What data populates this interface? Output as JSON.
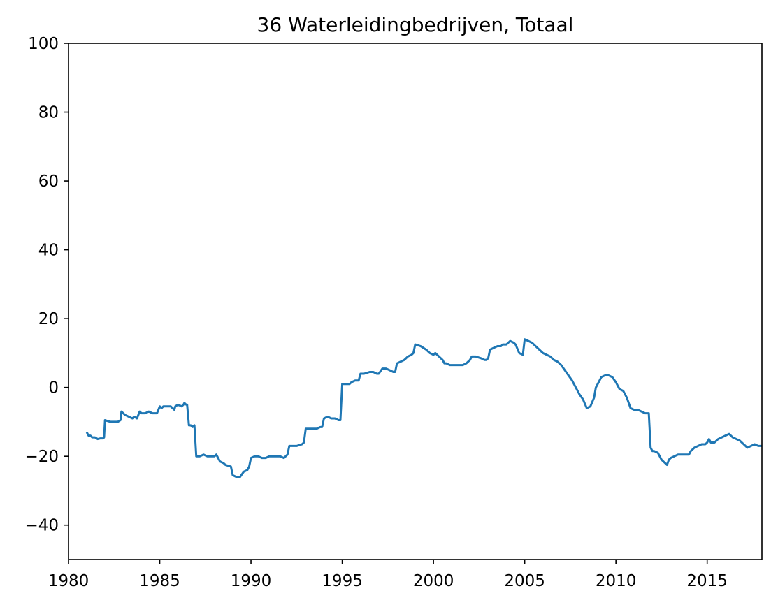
{
  "colors": {
    "series": "#1f77b4",
    "axes": "#000000",
    "background": "#ffffff"
  },
  "chart_data": {
    "type": "line",
    "title": "36 Waterleidingbedrijven, Totaal",
    "xlabel": "",
    "ylabel": "",
    "xlim": [
      1980,
      2018
    ],
    "ylim": [
      -50,
      100
    ],
    "xticks": [
      1980,
      1985,
      1990,
      1995,
      2000,
      2005,
      2010,
      2015
    ],
    "yticks": [
      -40,
      -20,
      0,
      20,
      40,
      60,
      80,
      100
    ],
    "xtick_labels": [
      "1980",
      "1985",
      "1990",
      "1995",
      "2000",
      "2005",
      "2010",
      "2015"
    ],
    "ytick_labels": [
      "−40",
      "−20",
      "0",
      "20",
      "40",
      "60",
      "80",
      "100"
    ],
    "grid": false,
    "legend": "none",
    "series": [
      {
        "x": [
          1981.0,
          1981.1,
          1981.2,
          1981.3,
          1981.45,
          1981.6,
          1981.75,
          1981.9,
          1981.95,
          1982.0,
          1982.1,
          1982.3,
          1982.5,
          1982.7,
          1982.85,
          1982.9,
          1983.0,
          1983.1,
          1983.3,
          1983.5,
          1983.6,
          1983.75,
          1983.9,
          1984.0,
          1984.2,
          1984.4,
          1984.6,
          1984.75,
          1984.85,
          1985.0,
          1985.1,
          1985.2,
          1985.4,
          1985.6,
          1985.8,
          1985.85,
          1986.0,
          1986.2,
          1986.3,
          1986.35,
          1986.45,
          1986.5,
          1986.6,
          1986.7,
          1986.8,
          1986.9,
          1987.0,
          1987.2,
          1987.4,
          1987.6,
          1987.8,
          1988.0,
          1988.1,
          1988.3,
          1988.5,
          1988.6,
          1988.9,
          1989.0,
          1989.2,
          1989.4,
          1989.6,
          1989.8,
          1989.9,
          1990.0,
          1990.2,
          1990.4,
          1990.6,
          1990.8,
          1991.0,
          1991.2,
          1991.4,
          1991.6,
          1991.8,
          1992.0,
          1992.1,
          1992.2,
          1992.5,
          1992.8,
          1992.9,
          1993.0,
          1993.1,
          1993.4,
          1993.6,
          1993.8,
          1993.9,
          1994.0,
          1994.2,
          1994.4,
          1994.6,
          1994.8,
          1994.9,
          1995.0,
          1995.2,
          1995.4,
          1995.5,
          1995.7,
          1995.9,
          1996.0,
          1996.2,
          1996.5,
          1996.7,
          1996.9,
          1997.0,
          1997.2,
          1997.4,
          1997.6,
          1997.8,
          1997.9,
          1998.0,
          1998.2,
          1998.4,
          1998.6,
          1998.8,
          1998.9,
          1999.0,
          1999.3,
          1999.6,
          1999.8,
          2000.0,
          2000.1,
          2000.3,
          2000.5,
          2000.6,
          2000.7,
          2000.9,
          2001.2,
          2001.5,
          2001.6,
          2001.8,
          2001.9,
          2002.0,
          2002.1,
          2002.3,
          2002.6,
          2002.8,
          2002.9,
          2003.0,
          2003.1,
          2003.3,
          2003.5,
          2003.7,
          2003.8,
          2003.9,
          2004.0,
          2004.2,
          2004.4,
          2004.5,
          2004.7,
          2004.9,
          2005.0,
          2005.2,
          2005.4,
          2005.6,
          2005.8,
          2006.0,
          2006.2,
          2006.4,
          2006.6,
          2006.8,
          2007.0,
          2007.2,
          2007.4,
          2007.6,
          2007.8,
          2008.0,
          2008.2,
          2008.4,
          2008.6,
          2008.8,
          2008.9,
          2009.0,
          2009.2,
          2009.4,
          2009.6,
          2009.8,
          2010.0,
          2010.2,
          2010.4,
          2010.6,
          2010.8,
          2011.0,
          2011.2,
          2011.4,
          2011.6,
          2011.8,
          2011.9,
          2012.0,
          2012.1,
          2012.3,
          2012.5,
          2012.7,
          2012.8,
          2012.9,
          2013.0,
          2013.2,
          2013.4,
          2013.6,
          2013.8,
          2014.0,
          2014.1,
          2014.3,
          2014.5,
          2014.7,
          2014.9,
          2015.0,
          2015.1,
          2015.2,
          2015.4,
          2015.6,
          2015.8,
          2016.0,
          2016.2,
          2016.4,
          2016.6,
          2016.8,
          2017.0,
          2017.2,
          2017.4,
          2017.6,
          2017.8,
          2018.0
        ],
        "y": [
          -13,
          -14,
          -14,
          -14.5,
          -14.5,
          -15,
          -14.8,
          -14.8,
          -14.5,
          -9.5,
          -9.7,
          -10,
          -10,
          -10,
          -9.5,
          -7,
          -7.5,
          -8,
          -8.5,
          -9,
          -8.5,
          -9,
          -7,
          -7.5,
          -7.5,
          -7,
          -7.5,
          -7.5,
          -7.5,
          -5.5,
          -6,
          -5.5,
          -5.5,
          -5.5,
          -6.5,
          -5.5,
          -5,
          -5.5,
          -5,
          -4.5,
          -5,
          -5,
          -11,
          -11,
          -11.5,
          -11,
          -20,
          -20,
          -19.5,
          -20,
          -20,
          -20,
          -19.5,
          -21.5,
          -22,
          -22.5,
          -23,
          -25.5,
          -26,
          -26,
          -24.5,
          -24,
          -23,
          -20.5,
          -20,
          -20,
          -20.5,
          -20.5,
          -20,
          -20,
          -20,
          -20,
          -20.5,
          -19.5,
          -17,
          -17,
          -17,
          -16.5,
          -16,
          -12,
          -12,
          -12,
          -12,
          -11.5,
          -11.5,
          -9,
          -8.5,
          -9,
          -9,
          -9.5,
          -9.5,
          1,
          1,
          1,
          1.5,
          2,
          2,
          4,
          4,
          4.5,
          4.5,
          4,
          4,
          5.5,
          5.5,
          5,
          4.5,
          4.5,
          7,
          7.5,
          8,
          9,
          9.5,
          10,
          12.5,
          12,
          11,
          10,
          9.5,
          10,
          9,
          8,
          7,
          7,
          6.5,
          6.5,
          6.5,
          6.5,
          7,
          7.5,
          8,
          9,
          9,
          8.5,
          8,
          8,
          8.5,
          11,
          11.5,
          12,
          12,
          12.5,
          12.5,
          12.5,
          13.5,
          13,
          12.5,
          10,
          9.5,
          14,
          13.5,
          13,
          12,
          11,
          10,
          9.5,
          9,
          8,
          7.5,
          6.5,
          5,
          3.5,
          2,
          0,
          -2,
          -3.5,
          -6,
          -5.5,
          -3,
          0,
          1,
          3,
          3.5,
          3.5,
          3,
          1.5,
          -0.5,
          -1,
          -3,
          -6,
          -6.5,
          -6.5,
          -7,
          -7.5,
          -7.5,
          -17.5,
          -18.5,
          -18.5,
          -19,
          -21,
          -22,
          -22.5,
          -21,
          -20.5,
          -20,
          -19.5,
          -19.5,
          -19.5,
          -19.5,
          -18.5,
          -17.5,
          -17,
          -16.5,
          -16.5,
          -16,
          -15,
          -16,
          -16,
          -15,
          -14.5,
          -14,
          -13.5,
          -14.5,
          -15,
          -15.5,
          -16.5,
          -17.5,
          -17,
          -16.5,
          -17,
          -17
        ]
      }
    ]
  }
}
